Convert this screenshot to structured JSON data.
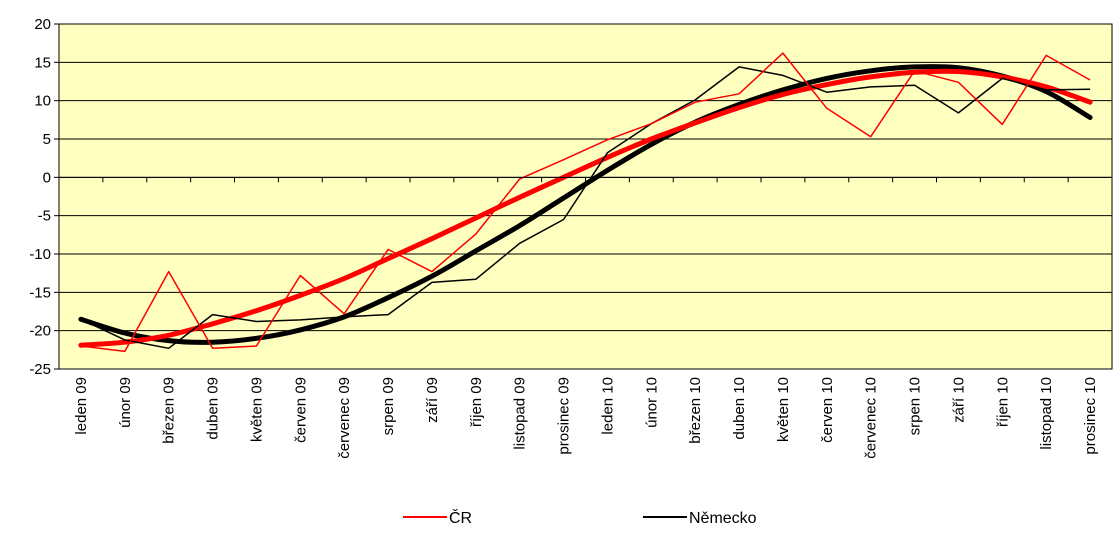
{
  "chart_data": {
    "type": "line",
    "title": "",
    "xlabel": "",
    "ylabel": "",
    "ylim": [
      -25,
      20
    ],
    "yticks": [
      -25,
      -20,
      -15,
      -10,
      -5,
      0,
      5,
      10,
      15,
      20
    ],
    "grid": "horizontal",
    "legend": "bottom",
    "plot_background": "#FFFFC0",
    "categories": [
      "leden 09",
      "únor 09",
      "březen 09",
      "duben 09",
      "květen 09",
      "červen 09",
      "červenec 09",
      "srpen 09",
      "září 09",
      "říjen 09",
      "listopad 09",
      "prosinec 09",
      "leden 10",
      "únor 10",
      "březen 10",
      "duben 10",
      "květen 10",
      "červen 10",
      "červenec 10",
      "srpen 10",
      "září 10",
      "říjen 10",
      "listopad 10",
      "prosinec 10"
    ],
    "series": [
      {
        "name": "ČR",
        "color": "#FF0000",
        "values": [
          -22,
          -22.7,
          -12.3,
          -22.3,
          -22,
          -12.8,
          -17.8,
          -9.4,
          -12.3,
          -7.4,
          -0.2,
          2.3,
          4.9,
          7,
          9.8,
          10.9,
          16.2,
          9,
          5.3,
          13.9,
          12.4,
          6.9,
          15.9,
          12.7
        ]
      },
      {
        "name": "Německo",
        "color": "#000000",
        "values": [
          -18.5,
          -21.2,
          -22.3,
          -17.9,
          -18.8,
          -18.6,
          -18.2,
          -17.9,
          -13.7,
          -13.3,
          -8.6,
          -5.5,
          3.2,
          7,
          10.1,
          14.4,
          13.3,
          11.1,
          11.8,
          12,
          8.4,
          12.9,
          11.4,
          11.5
        ]
      }
    ],
    "trendlines": [
      {
        "series": "ČR",
        "color": "#FF0000",
        "values": [
          -21.9,
          -21.5,
          -20.6,
          -19.1,
          -17.4,
          -15.4,
          -13.2,
          -10.6,
          -8,
          -5.3,
          -2.6,
          0,
          2.6,
          5,
          7.1,
          9.1,
          10.8,
          12.1,
          13.1,
          13.7,
          13.8,
          13.1,
          11.8,
          9.8
        ]
      },
      {
        "series": "Německo",
        "color": "#000000",
        "values": [
          -18.5,
          -20.3,
          -21.3,
          -21.5,
          -21,
          -19.9,
          -18.2,
          -15.7,
          -12.9,
          -9.6,
          -6.3,
          -2.7,
          0.9,
          4.3,
          7.2,
          9.5,
          11.4,
          12.9,
          13.9,
          14.4,
          14.3,
          13.2,
          11.2,
          7.8
        ]
      }
    ]
  }
}
